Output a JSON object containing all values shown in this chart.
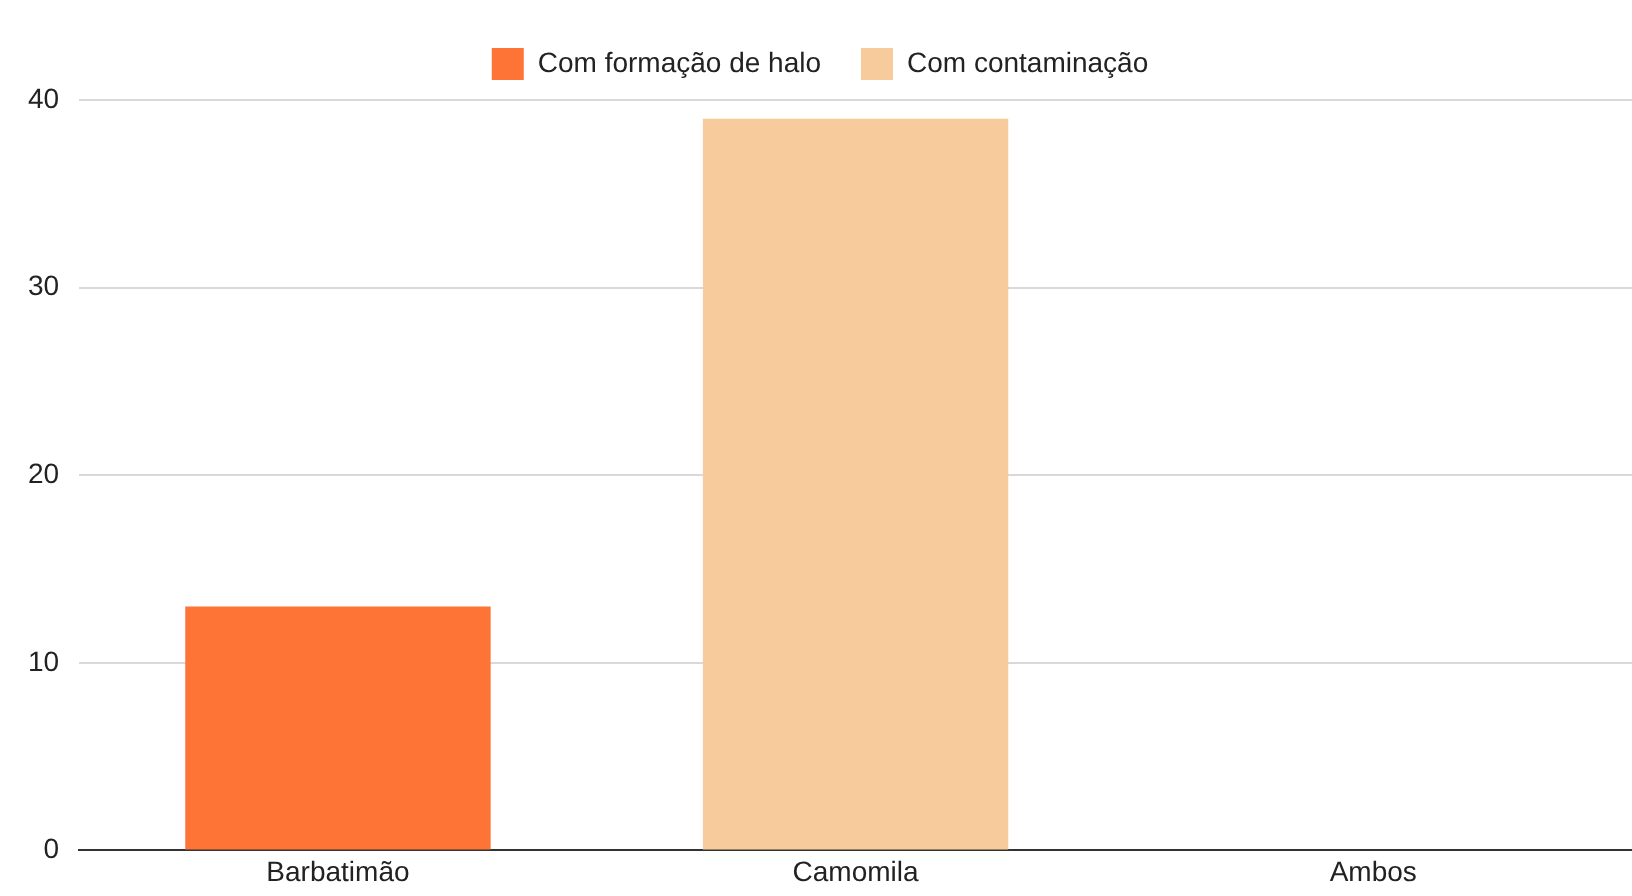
{
  "chart_data": {
    "type": "bar",
    "categories": [
      "Barbatimão",
      "Camomila",
      "Ambos"
    ],
    "series": [
      {
        "name": "Com formação de halo",
        "color": "#fd7436",
        "values": [
          13,
          0,
          0
        ]
      },
      {
        "name": "Com contaminação",
        "color": "#f8cb9c",
        "values": [
          0,
          39,
          0
        ]
      }
    ],
    "stacked": true,
    "ylim": [
      0,
      40
    ],
    "yticks": [
      0,
      10,
      20,
      30,
      40
    ],
    "grid": "y",
    "legend": "top"
  }
}
